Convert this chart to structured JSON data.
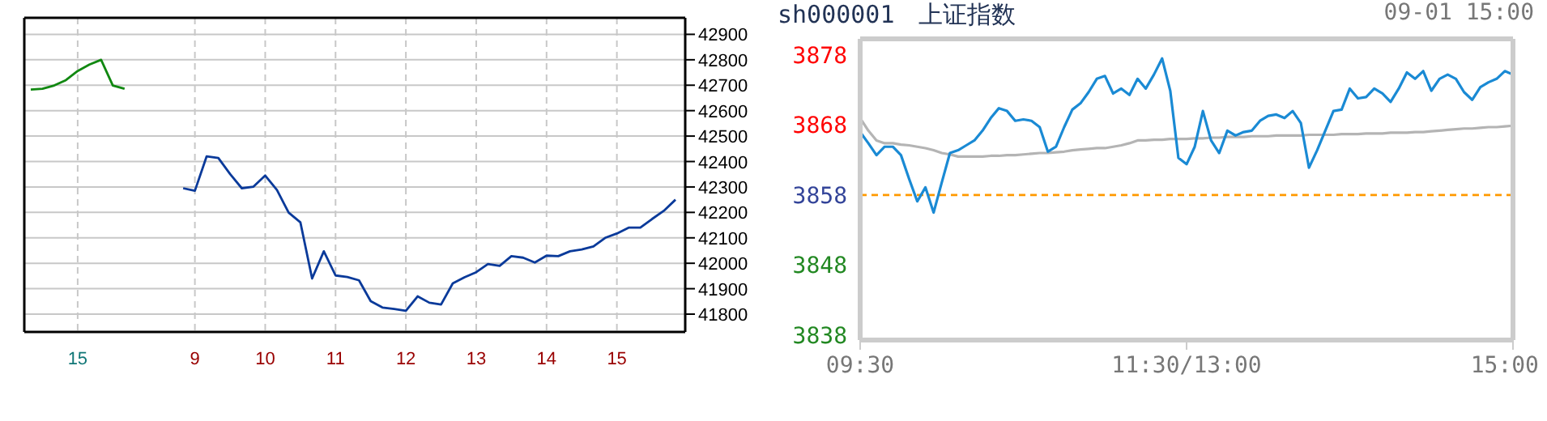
{
  "chart_data": [
    {
      "type": "line",
      "grid": true,
      "categories": [
        null,
        null,
        null,
        null,
        "15",
        null,
        null,
        null,
        null,
        null,
        null,
        null,
        null,
        null,
        "9",
        null,
        null,
        null,
        null,
        null,
        "10",
        null,
        null,
        null,
        null,
        null,
        "11",
        null,
        null,
        null,
        null,
        null,
        "12",
        null,
        null,
        null,
        null,
        null,
        "13",
        null,
        null,
        null,
        null,
        null,
        "14",
        null,
        null,
        null,
        null,
        null,
        "15",
        null,
        null,
        null,
        null,
        null
      ],
      "ylim": [
        41730,
        42965
      ],
      "yticks": [
        41800,
        41900,
        42000,
        42100,
        42200,
        42300,
        42400,
        42500,
        42600,
        42700,
        42800,
        42900
      ],
      "series": [
        {
          "color": "#118811",
          "values": [
            42683,
            42686,
            42699,
            42720,
            42756,
            42781,
            42800,
            42699,
            42686,
            null,
            null,
            null,
            null,
            null,
            null,
            null,
            null,
            null,
            null,
            null,
            null,
            null,
            null,
            null,
            null,
            null,
            null,
            null,
            null,
            null,
            null,
            null,
            null,
            null,
            null,
            null,
            null,
            null,
            null,
            null,
            null,
            null,
            null,
            null,
            null,
            null,
            null,
            null,
            null,
            null,
            null,
            null,
            null,
            null,
            null,
            null
          ]
        },
        {
          "color": "#0a3a9a",
          "values": [
            null,
            null,
            null,
            null,
            null,
            null,
            null,
            null,
            null,
            null,
            null,
            null,
            null,
            42295,
            42285,
            42420,
            42414,
            42351,
            42295,
            42301,
            42345,
            42288,
            42199,
            42161,
            41940,
            42047,
            41952,
            41946,
            41933,
            41851,
            41826,
            41820,
            41813,
            41870,
            41845,
            41838,
            41921,
            41945,
            41965,
            41997,
            41990,
            42028,
            42022,
            42003,
            42030,
            42028,
            42047,
            42054,
            42066,
            42100,
            42117,
            42140,
            42140,
            42174,
            42206,
            42250
          ]
        }
      ]
    },
    {
      "type": "line",
      "title": "sh000001　上证指数",
      "subtitle": "09-01 15:00",
      "categories": [
        "09:30",
        null,
        null,
        null,
        null,
        null,
        null,
        null,
        null,
        null,
        null,
        null,
        null,
        null,
        null,
        null,
        null,
        null,
        null,
        null,
        null,
        null,
        null,
        null,
        null,
        null,
        null,
        null,
        null,
        null,
        null,
        null,
        null,
        null,
        null,
        null,
        null,
        null,
        null,
        null,
        "11:30/13:00",
        null,
        null,
        null,
        null,
        null,
        null,
        null,
        null,
        null,
        null,
        null,
        null,
        null,
        null,
        null,
        null,
        null,
        null,
        null,
        null,
        null,
        null,
        null,
        null,
        null,
        null,
        null,
        null,
        null,
        null,
        null,
        null,
        null,
        null,
        null,
        null,
        null,
        null,
        null,
        "15:00"
      ],
      "ylim": [
        3837.3,
        3880.3
      ],
      "yticks": [
        3838,
        3848,
        3858,
        3868,
        3878
      ],
      "ref_lines": [
        {
          "axis": "y",
          "value": 3858,
          "color": "#ff9900",
          "line_style": "dashed"
        }
      ],
      "series": [
        {
          "color": "#b4b4b4",
          "values": [
            3869.0,
            3867.2,
            3865.8,
            3865.4,
            3865.4,
            3865.2,
            3865.1,
            3864.9,
            3864.7,
            3864.4,
            3864.0,
            3863.8,
            3863.5,
            3863.5,
            3863.5,
            3863.5,
            3863.6,
            3863.6,
            3863.7,
            3863.7,
            3863.8,
            3863.9,
            3864.0,
            3864.0,
            3864.1,
            3864.2,
            3864.4,
            3864.5,
            3864.6,
            3864.7,
            3864.7,
            3864.9,
            3865.1,
            3865.4,
            3865.8,
            3865.8,
            3865.9,
            3865.9,
            3866.0,
            3866.0,
            3866.0,
            3866.1,
            3866.1,
            3866.2,
            3866.2,
            3866.3,
            3866.3,
            3866.3,
            3866.4,
            3866.4,
            3866.4,
            3866.5,
            3866.5,
            3866.5,
            3866.5,
            3866.6,
            3866.6,
            3866.6,
            3866.6,
            3866.7,
            3866.7,
            3866.7,
            3866.8,
            3866.8,
            3866.8,
            3866.9,
            3866.9,
            3866.9,
            3867.0,
            3867.0,
            3867.1,
            3867.2,
            3867.3,
            3867.4,
            3867.5,
            3867.5,
            3867.6,
            3867.7,
            3867.7,
            3867.8,
            3867.9
          ]
        },
        {
          "color": "#1a8ad4",
          "values": [
            3867.0,
            3865.4,
            3863.7,
            3864.9,
            3864.9,
            3863.7,
            3860.3,
            3857.1,
            3859.1,
            3855.5,
            3859.8,
            3864.0,
            3864.4,
            3865.1,
            3865.8,
            3867.2,
            3869.0,
            3870.4,
            3870.0,
            3868.6,
            3868.8,
            3868.6,
            3867.7,
            3864.2,
            3864.9,
            3867.7,
            3870.2,
            3871.1,
            3872.7,
            3874.6,
            3875.0,
            3872.5,
            3873.2,
            3872.3,
            3874.6,
            3873.2,
            3875.2,
            3877.5,
            3872.9,
            3863.3,
            3862.4,
            3864.9,
            3870.0,
            3865.8,
            3864.0,
            3867.2,
            3866.5,
            3867.0,
            3867.2,
            3868.6,
            3869.3,
            3869.5,
            3869.0,
            3870.0,
            3868.3,
            3861.9,
            3864.4,
            3867.2,
            3870.0,
            3870.2,
            3873.2,
            3871.8,
            3872.0,
            3873.2,
            3872.5,
            3871.3,
            3873.2,
            3875.5,
            3874.6,
            3875.7,
            3872.9,
            3874.6,
            3875.2,
            3874.6,
            3872.7,
            3871.6,
            3873.4,
            3874.1,
            3874.6,
            3875.7,
            3875.2
          ]
        }
      ]
    }
  ]
}
